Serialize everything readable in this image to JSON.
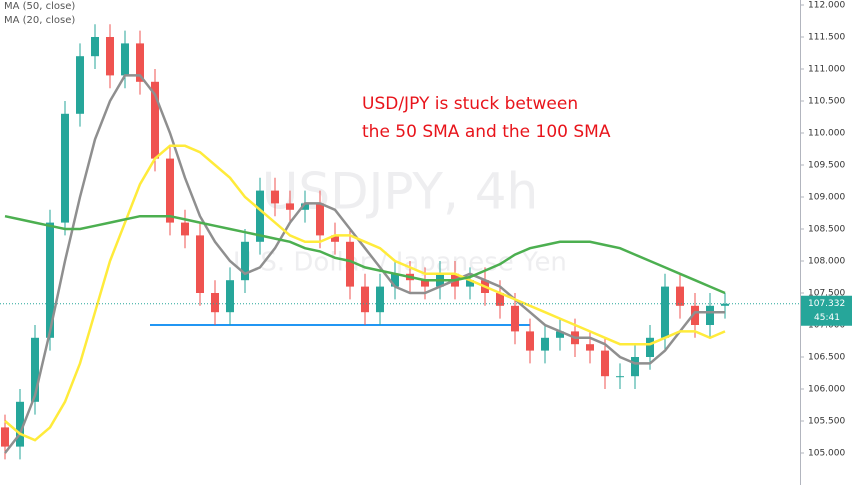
{
  "chart_data": {
    "type": "candlestick",
    "legend": [
      "MA (50, close)",
      "MA (20, close)"
    ],
    "watermark": "USDJPY, 4h",
    "watermark_subtitle": "U.S. Dollar / Japanese Yen",
    "annotation": [
      "USD/JPY is stuck between",
      "the 50 SMA and the 100 SMA"
    ],
    "annotation_color": "#e8141b",
    "ylim": [
      104.5,
      112.078
    ],
    "yticks": [
      {
        "value": 105,
        "label": "105.000"
      },
      {
        "value": 105.5,
        "label": "105.500"
      },
      {
        "value": 106,
        "label": "106.000"
      },
      {
        "value": 106.5,
        "label": "106.500"
      },
      {
        "value": 107,
        "label": "107.000"
      },
      {
        "value": 107.5,
        "label": "107.500"
      },
      {
        "value": 108,
        "label": "108.000"
      },
      {
        "value": 108.5,
        "label": "108.500"
      },
      {
        "value": 109,
        "label": "109.000"
      },
      {
        "value": 109.5,
        "label": "109.500"
      },
      {
        "value": 110,
        "label": "110.000"
      },
      {
        "value": 110.5,
        "label": "110.500"
      },
      {
        "value": 111,
        "label": "111.000"
      },
      {
        "value": 111.5,
        "label": "111.500"
      },
      {
        "value": 112,
        "label": "112.000"
      }
    ],
    "up_color": "#26a69a",
    "down_color": "#ef5350",
    "open": [
      105.4,
      105.1,
      105.8,
      106.8,
      108.6,
      110.3,
      111.2,
      111.5,
      110.9,
      111.4,
      110.8,
      109.6,
      108.6,
      108.4,
      107.5,
      107.2,
      107.7,
      108.3,
      109.1,
      108.9,
      108.8,
      108.9,
      108.4,
      108.3,
      107.6,
      107.2,
      107.6,
      107.8,
      107.7,
      107.6,
      107.8,
      107.6,
      107.7,
      107.5,
      107.3,
      106.9,
      106.6,
      106.8,
      106.9,
      106.7,
      106.6,
      106.2,
      106.2,
      106.5,
      106.8,
      107.6,
      107.3,
      107.0,
      107.3
    ],
    "high": [
      105.6,
      106.0,
      107.0,
      108.8,
      110.5,
      111.4,
      111.7,
      111.7,
      111.6,
      111.6,
      111.0,
      109.8,
      108.8,
      108.6,
      107.7,
      107.9,
      108.5,
      109.3,
      109.3,
      109.1,
      109.1,
      109.1,
      108.6,
      108.5,
      107.8,
      107.8,
      108.0,
      108.0,
      107.9,
      108.0,
      108.0,
      107.9,
      107.9,
      107.7,
      107.5,
      107.1,
      107.0,
      107.1,
      107.1,
      106.9,
      106.8,
      106.4,
      106.7,
      107.0,
      107.8,
      107.8,
      107.5,
      107.5,
      107.5
    ],
    "low": [
      104.9,
      104.9,
      105.6,
      106.6,
      108.4,
      110.1,
      111.0,
      110.7,
      110.7,
      110.6,
      109.4,
      108.4,
      108.2,
      107.3,
      107.0,
      107.0,
      107.5,
      108.1,
      108.7,
      108.6,
      108.6,
      108.2,
      108.1,
      107.4,
      107.0,
      107.0,
      107.4,
      107.5,
      107.4,
      107.4,
      107.4,
      107.4,
      107.3,
      107.1,
      106.7,
      106.4,
      106.4,
      106.6,
      106.5,
      106.4,
      106.0,
      106.0,
      106.0,
      106.3,
      106.6,
      107.1,
      106.8,
      106.8,
      107.1
    ],
    "close": [
      105.1,
      105.8,
      106.8,
      108.6,
      110.3,
      111.2,
      111.5,
      110.9,
      111.4,
      110.8,
      109.6,
      108.6,
      108.4,
      107.5,
      107.2,
      107.7,
      108.3,
      109.1,
      108.9,
      108.8,
      108.9,
      108.4,
      108.3,
      107.6,
      107.2,
      107.6,
      107.8,
      107.7,
      107.6,
      107.8,
      107.6,
      107.7,
      107.5,
      107.3,
      106.9,
      106.6,
      106.8,
      106.9,
      106.7,
      106.6,
      106.2,
      106.2,
      106.5,
      106.8,
      107.6,
      107.3,
      107.0,
      107.3,
      107.332
    ],
    "series": [
      {
        "color": "#8f8f8f",
        "values": [
          105.0,
          105.3,
          105.9,
          106.9,
          108.0,
          109.0,
          109.9,
          110.5,
          110.9,
          110.9,
          110.6,
          110.0,
          109.3,
          108.7,
          108.3,
          108.0,
          107.8,
          107.9,
          108.2,
          108.6,
          108.9,
          108.9,
          108.8,
          108.5,
          108.2,
          107.9,
          107.6,
          107.5,
          107.5,
          107.6,
          107.7,
          107.8,
          107.7,
          107.6,
          107.4,
          107.2,
          107.0,
          106.9,
          106.8,
          106.8,
          106.7,
          106.5,
          106.4,
          106.4,
          106.6,
          106.9,
          107.2,
          107.2,
          107.2
        ]
      },
      {
        "color": "#ffeb3b",
        "values": [
          105.5,
          105.3,
          105.2,
          105.4,
          105.8,
          106.4,
          107.2,
          108.0,
          108.6,
          109.2,
          109.6,
          109.8,
          109.8,
          109.7,
          109.5,
          109.3,
          109.0,
          108.8,
          108.6,
          108.4,
          108.3,
          108.3,
          108.4,
          108.4,
          108.3,
          108.2,
          108.0,
          107.9,
          107.8,
          107.8,
          107.8,
          107.7,
          107.6,
          107.5,
          107.4,
          107.3,
          107.2,
          107.1,
          107.0,
          106.9,
          106.8,
          106.7,
          106.7,
          106.7,
          106.8,
          106.9,
          106.9,
          106.8,
          106.9
        ]
      },
      {
        "color": "#4caf50",
        "values": [
          108.7,
          108.65,
          108.6,
          108.55,
          108.5,
          108.5,
          108.55,
          108.6,
          108.65,
          108.7,
          108.7,
          108.7,
          108.65,
          108.6,
          108.55,
          108.5,
          108.45,
          108.4,
          108.35,
          108.3,
          108.2,
          108.15,
          108.05,
          108.0,
          107.9,
          107.85,
          107.8,
          107.75,
          107.7,
          107.7,
          107.7,
          107.75,
          107.85,
          107.95,
          108.1,
          108.2,
          108.25,
          108.3,
          108.3,
          108.3,
          108.25,
          108.2,
          108.1,
          108.0,
          107.9,
          107.8,
          107.7,
          107.6,
          107.5
        ]
      }
    ],
    "support_line": {
      "value": 107.0,
      "color": "#2196f3"
    },
    "last_price": 107.332,
    "countdown": "45:41",
    "price_label_color": "#26a69a"
  }
}
